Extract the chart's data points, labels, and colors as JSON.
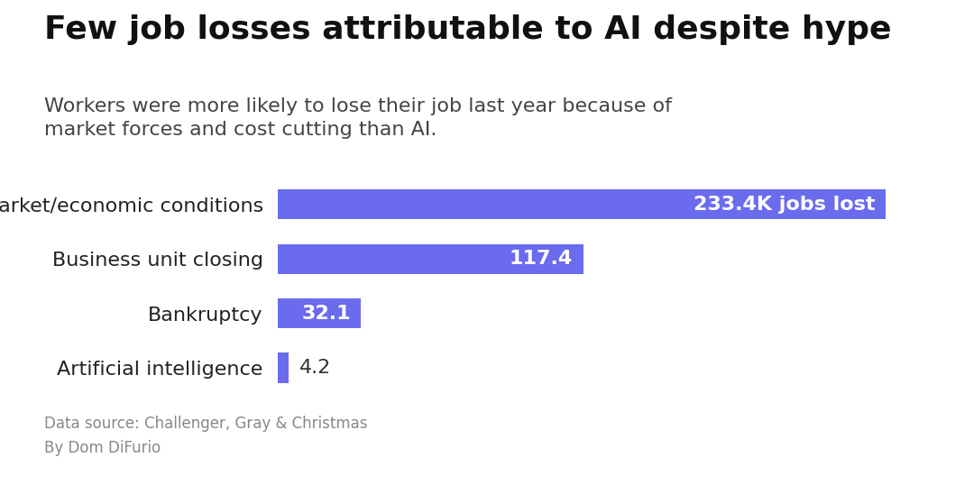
{
  "title": "Few job losses attributable to AI despite hype",
  "subtitle": "Workers were more likely to lose their job last year because of\nmarket forces and cost cutting than AI.",
  "categories": [
    "Market/economic conditions",
    "Business unit closing",
    "Bankruptcy",
    "Artificial intelligence"
  ],
  "values": [
    233.4,
    117.4,
    32.1,
    4.2
  ],
  "bar_color": "#6B6BEE",
  "labels": [
    "233.4K jobs lost",
    "117.4",
    "32.1",
    "4.2"
  ],
  "label_inside": [
    true,
    true,
    true,
    false
  ],
  "label_color_inside": "#ffffff",
  "label_color_outside": "#333333",
  "source_text": "Data source: Challenger, Gray & Christmas\nBy Dom DiFurio",
  "background_color": "#ffffff",
  "title_fontsize": 26,
  "subtitle_fontsize": 16,
  "label_fontsize": 16,
  "category_fontsize": 16,
  "source_fontsize": 12,
  "xlim": [
    0,
    260
  ]
}
